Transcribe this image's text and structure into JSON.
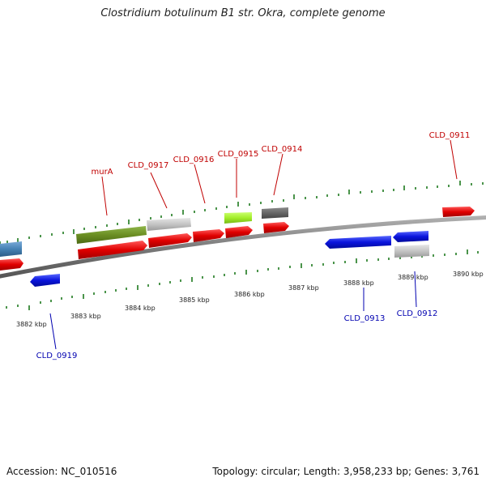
{
  "title": "Clostridium botulinum B1 str. Okra, complete genome",
  "footer": {
    "accession": "Accession: NC_010516",
    "summary": "Topology: circular; Length: 3,958,233 bp; Genes: 3,761"
  },
  "colors": {
    "forward_gene": "#e00000",
    "reverse_gene": "#0a14dd",
    "label_forward": "#c00000",
    "label_reverse": "#0000b0",
    "tick": "#1e7a1e",
    "backbone": "#808080",
    "murA": "#6b8e23",
    "light_grey": "#c4c4c4",
    "dark_grey": "#666666",
    "lime": "#a2ee2a",
    "steel_blue": "#4682b4"
  },
  "scale": {
    "unit": "kbp",
    "tick_labels": [
      "3882 kbp",
      "3883 kbp",
      "3884 kbp",
      "3885 kbp",
      "3886 kbp",
      "3887 kbp",
      "3888 kbp",
      "3889 kbp",
      "3890 kbp"
    ]
  },
  "gene_labels": {
    "forward": [
      "murA",
      "CLD_0917",
      "CLD_0916",
      "CLD_0915",
      "CLD_0914",
      "CLD_0911"
    ],
    "reverse": [
      "CLD_0919",
      "CLD_0913",
      "CLD_0912"
    ]
  }
}
